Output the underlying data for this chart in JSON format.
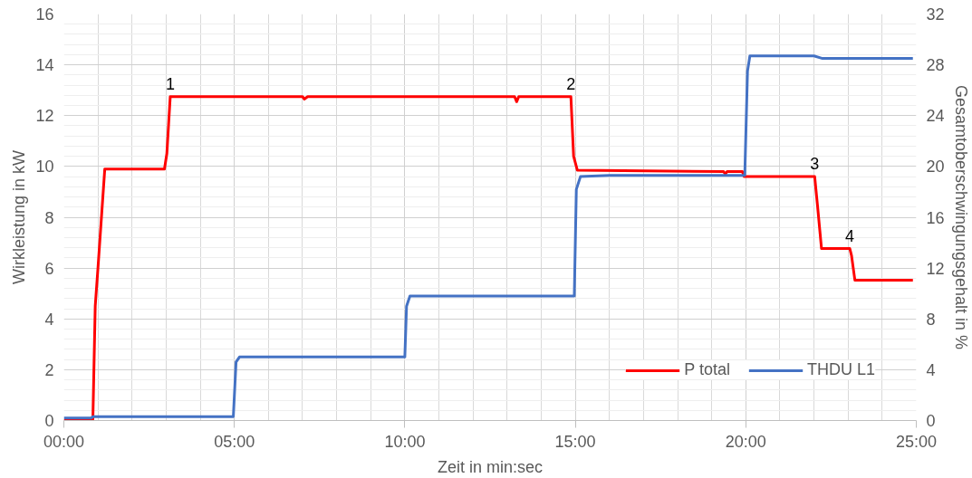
{
  "chart_data": {
    "type": "line",
    "xlabel": "Zeit in min:sec",
    "ylabel": "Wirkleistung in kW",
    "y2label": "Gesamtoberschwingungsgehalt in %",
    "xlim": [
      0,
      25
    ],
    "xticks": [
      {
        "value": 0,
        "label": "00:00"
      },
      {
        "value": 5,
        "label": "05:00"
      },
      {
        "value": 10,
        "label": "10:00"
      },
      {
        "value": 15,
        "label": "15:00"
      },
      {
        "value": 20,
        "label": "20:00"
      },
      {
        "value": 25,
        "label": "25:00"
      }
    ],
    "ylim": [
      0,
      16
    ],
    "yticks": [
      0,
      2,
      4,
      6,
      8,
      10,
      12,
      14,
      16
    ],
    "y2lim": [
      0,
      32
    ],
    "y2ticks": [
      0,
      4,
      8,
      12,
      16,
      20,
      24,
      28,
      32
    ],
    "grid": true,
    "legend": "bottom right",
    "marker": "none",
    "line_style": "solid",
    "series": [
      {
        "name": "P total",
        "color": "#ff0000",
        "x": [
          0,
          0.85,
          0.92,
          1.0,
          1.2,
          2.95,
          3.02,
          3.12,
          7.0,
          7.05,
          7.15,
          13.22,
          13.28,
          13.34,
          14.87,
          14.95,
          15.06,
          19.35,
          19.4,
          19.45,
          19.9,
          19.95,
          22.02,
          22.1,
          22.22,
          23.05,
          23.1,
          23.2,
          24.9
        ],
        "values": [
          0,
          0,
          4.5,
          6.0,
          9.9,
          9.9,
          10.5,
          12.75,
          12.75,
          12.65,
          12.75,
          12.75,
          12.55,
          12.75,
          12.75,
          10.4,
          9.85,
          9.8,
          9.7,
          9.8,
          9.8,
          9.6,
          9.6,
          8.5,
          6.77,
          6.77,
          6.5,
          5.52,
          5.52
        ]
      },
      {
        "name": "THDU L1",
        "color": "#4472c4",
        "axis": "y2",
        "x": [
          0,
          0.8,
          0.85,
          4.97,
          5.05,
          5.15,
          10.0,
          10.05,
          10.15,
          14.97,
          15.03,
          15.15,
          16.0,
          19.97,
          20.05,
          20.12,
          22.0,
          22.25,
          24.9
        ],
        "values": [
          0.2,
          0.2,
          0.3,
          0.3,
          4.6,
          5.0,
          5.0,
          9.0,
          9.8,
          9.8,
          18.2,
          19.2,
          19.3,
          19.3,
          27.5,
          28.7,
          28.7,
          28.5,
          28.5
        ]
      }
    ],
    "annotations": [
      {
        "text": "1",
        "x": 3.12,
        "y": 12.75
      },
      {
        "text": "2",
        "x": 14.87,
        "y": 12.75
      },
      {
        "text": "3",
        "x": 22.02,
        "y": 9.6
      },
      {
        "text": "4",
        "x": 23.05,
        "y": 6.77
      }
    ]
  }
}
